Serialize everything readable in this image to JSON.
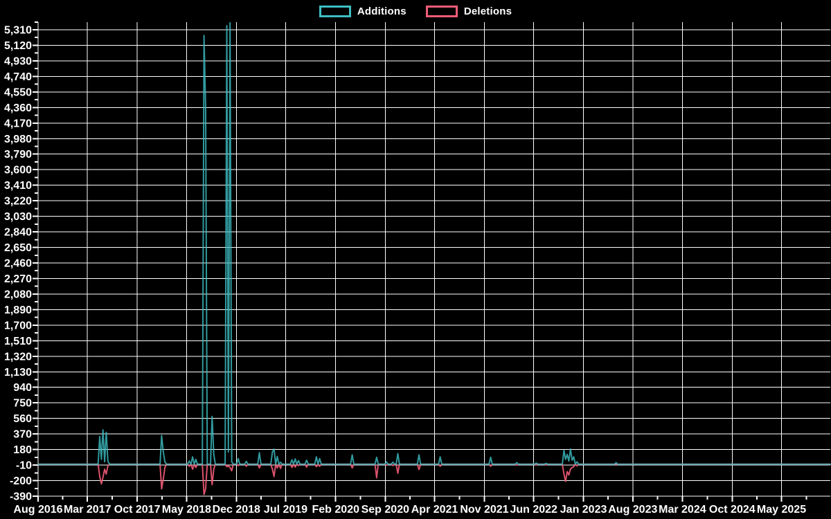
{
  "colors": {
    "background": "#000000",
    "grid": "#ffffff",
    "axis_text": "#ffffff",
    "additions": "#3dbfc4",
    "deletions": "#f25c78"
  },
  "legend": {
    "position": "top-center",
    "items": [
      {
        "label": "Additions",
        "color": "#3dbfc4"
      },
      {
        "label": "Deletions",
        "color": "#f25c78"
      }
    ]
  },
  "chart_data": {
    "type": "line",
    "title": "",
    "grid": true,
    "legend_position": "top-center",
    "x_axis": {
      "start": "2016-08-01",
      "tick_labels": [
        "Aug 2016",
        "Mar 2017",
        "Oct 2017",
        "May 2018",
        "Dec 2018",
        "Jul 2019",
        "Feb 2020",
        "Sep 2020",
        "Apr 2021",
        "Nov 2021",
        "Jun 2022",
        "Jan 2023",
        "Aug 2023",
        "Mar 2024",
        "Oct 2024",
        "May 2025"
      ],
      "tick_dates": [
        "2016-08-01",
        "2017-03-01",
        "2017-10-01",
        "2018-05-01",
        "2018-12-01",
        "2019-07-01",
        "2020-02-01",
        "2020-09-01",
        "2021-04-01",
        "2021-11-01",
        "2022-06-01",
        "2023-01-01",
        "2023-08-01",
        "2024-03-01",
        "2024-10-01",
        "2025-05-01"
      ]
    },
    "y_axis": {
      "min": -390,
      "max": 5310,
      "step": 190
    },
    "series": [
      {
        "name": "Additions",
        "color": "#3dbfc4"
      },
      {
        "name": "Deletions",
        "color": "#f25c78"
      }
    ],
    "baseline_value": 0,
    "weeks": [
      {
        "week": "2017-04-23",
        "additions": 340,
        "deletions": -150
      },
      {
        "week": "2017-04-30",
        "additions": 60,
        "deletions": -240
      },
      {
        "week": "2017-05-07",
        "additions": 420,
        "deletions": -160
      },
      {
        "week": "2017-05-14",
        "additions": 30,
        "deletions": -60
      },
      {
        "week": "2017-05-21",
        "additions": 390,
        "deletions": -120
      },
      {
        "week": "2017-05-28",
        "additions": 40,
        "deletions": -20
      },
      {
        "week": "2018-01-14",
        "additions": 350,
        "deletions": -300
      },
      {
        "week": "2018-01-21",
        "additions": 150,
        "deletions": -180
      },
      {
        "week": "2018-01-28",
        "additions": 30,
        "deletions": -40
      },
      {
        "week": "2018-05-13",
        "additions": 40,
        "deletions": -25
      },
      {
        "week": "2018-05-27",
        "additions": 90,
        "deletions": -60
      },
      {
        "week": "2018-06-10",
        "additions": 60,
        "deletions": -40
      },
      {
        "week": "2018-07-15",
        "additions": 5240,
        "deletions": -370
      },
      {
        "week": "2018-07-22",
        "additions": 4380,
        "deletions": -300
      },
      {
        "week": "2018-08-19",
        "additions": 585,
        "deletions": -250
      },
      {
        "week": "2018-08-26",
        "additions": 120,
        "deletions": -60
      },
      {
        "week": "2018-10-21",
        "additions": 5360,
        "deletions": -30
      },
      {
        "week": "2018-10-28",
        "additions": 150,
        "deletions": -20
      },
      {
        "week": "2018-11-04",
        "additions": 5395,
        "deletions": -40
      },
      {
        "week": "2018-11-11",
        "additions": 30,
        "deletions": -80
      },
      {
        "week": "2018-12-09",
        "additions": 70,
        "deletions": -15
      },
      {
        "week": "2019-01-13",
        "additions": 35,
        "deletions": -25
      },
      {
        "week": "2019-03-10",
        "additions": 140,
        "deletions": -45
      },
      {
        "week": "2019-05-05",
        "additions": 150,
        "deletions": -60
      },
      {
        "week": "2019-05-12",
        "additions": 185,
        "deletions": -150
      },
      {
        "week": "2019-05-26",
        "additions": 95,
        "deletions": -45
      },
      {
        "week": "2019-06-09",
        "additions": 25,
        "deletions": -50
      },
      {
        "week": "2019-07-28",
        "additions": 55,
        "deletions": -40
      },
      {
        "week": "2019-08-11",
        "additions": 65,
        "deletions": -35
      },
      {
        "week": "2019-08-25",
        "additions": 45,
        "deletions": -15
      },
      {
        "week": "2019-09-29",
        "additions": 50,
        "deletions": -35
      },
      {
        "week": "2019-11-10",
        "additions": 90,
        "deletions": -30
      },
      {
        "week": "2019-11-24",
        "additions": 70,
        "deletions": -25
      },
      {
        "week": "2020-04-12",
        "additions": 115,
        "deletions": -45
      },
      {
        "week": "2020-07-26",
        "additions": 85,
        "deletions": -165
      },
      {
        "week": "2020-09-06",
        "additions": 30,
        "deletions": -10
      },
      {
        "week": "2020-10-04",
        "additions": 25,
        "deletions": -15
      },
      {
        "week": "2020-10-25",
        "additions": 130,
        "deletions": -110
      },
      {
        "week": "2021-01-24",
        "additions": 115,
        "deletions": -65
      },
      {
        "week": "2021-04-25",
        "additions": 90,
        "deletions": -25
      },
      {
        "week": "2021-11-28",
        "additions": 85,
        "deletions": -25
      },
      {
        "week": "2022-03-20",
        "additions": 20,
        "deletions": -10
      },
      {
        "week": "2022-06-12",
        "additions": 15,
        "deletions": -5
      },
      {
        "week": "2022-07-24",
        "additions": 12,
        "deletions": -8
      },
      {
        "week": "2022-10-09",
        "additions": 170,
        "deletions": -120
      },
      {
        "week": "2022-10-16",
        "additions": 60,
        "deletions": -210
      },
      {
        "week": "2022-10-23",
        "additions": 120,
        "deletions": -90
      },
      {
        "week": "2022-10-30",
        "additions": 40,
        "deletions": -130
      },
      {
        "week": "2022-11-06",
        "additions": 185,
        "deletions": -60
      },
      {
        "week": "2022-11-13",
        "additions": 50,
        "deletions": -40
      },
      {
        "week": "2022-11-20",
        "additions": 90,
        "deletions": -30
      },
      {
        "week": "2022-12-04",
        "additions": 30,
        "deletions": -20
      },
      {
        "week": "2023-05-21",
        "additions": 20,
        "deletions": 0
      }
    ]
  }
}
